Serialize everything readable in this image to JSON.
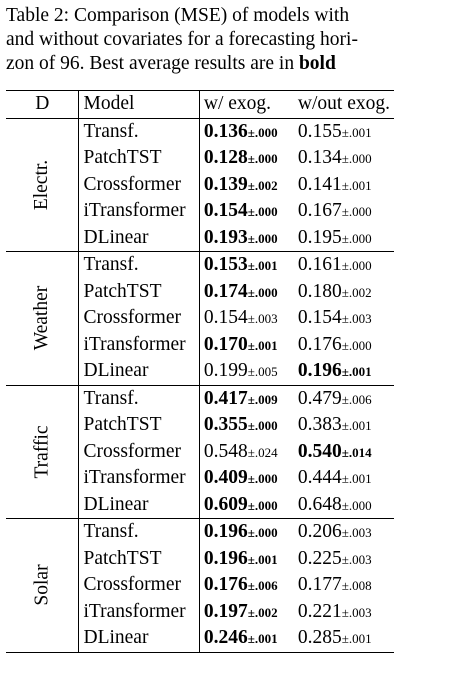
{
  "caption": {
    "line1": "Table 2: Comparison (MSE) of models with",
    "line2": "and without covariates for a forecasting hori-",
    "line3_prefix": "zon of 96. Best average results are in ",
    "line3_bold": "bold"
  },
  "header": {
    "dataset": "D",
    "model": "Model",
    "with": "w/ exog.",
    "without": "w/out exog."
  },
  "groups": [
    {
      "dataset": "Electr.",
      "rows": [
        {
          "model": "Transf.",
          "with": {
            "mean": "0.136",
            "sd": "±.000",
            "best": true
          },
          "without": {
            "mean": "0.155",
            "sd": "±.001",
            "best": false
          }
        },
        {
          "model": "PatchTST",
          "with": {
            "mean": "0.128",
            "sd": "±.000",
            "best": true
          },
          "without": {
            "mean": "0.134",
            "sd": "±.000",
            "best": false
          }
        },
        {
          "model": "Crossformer",
          "with": {
            "mean": "0.139",
            "sd": "±.002",
            "best": true
          },
          "without": {
            "mean": "0.141",
            "sd": "±.001",
            "best": false
          }
        },
        {
          "model": "iTransformer",
          "with": {
            "mean": "0.154",
            "sd": "±.000",
            "best": true
          },
          "without": {
            "mean": "0.167",
            "sd": "±.000",
            "best": false
          }
        },
        {
          "model": "DLinear",
          "with": {
            "mean": "0.193",
            "sd": "±.000",
            "best": true
          },
          "without": {
            "mean": "0.195",
            "sd": "±.000",
            "best": false
          }
        }
      ]
    },
    {
      "dataset": "Weather",
      "rows": [
        {
          "model": "Transf.",
          "with": {
            "mean": "0.153",
            "sd": "±.001",
            "best": true
          },
          "without": {
            "mean": "0.161",
            "sd": "±.000",
            "best": false
          }
        },
        {
          "model": "PatchTST",
          "with": {
            "mean": "0.174",
            "sd": "±.000",
            "best": true
          },
          "without": {
            "mean": "0.180",
            "sd": "±.002",
            "best": false
          }
        },
        {
          "model": "Crossformer",
          "with": {
            "mean": "0.154",
            "sd": "±.003",
            "best": false
          },
          "without": {
            "mean": "0.154",
            "sd": "±.003",
            "best": false
          }
        },
        {
          "model": "iTransformer",
          "with": {
            "mean": "0.170",
            "sd": "±.001",
            "best": true
          },
          "without": {
            "mean": "0.176",
            "sd": "±.000",
            "best": false
          }
        },
        {
          "model": "DLinear",
          "with": {
            "mean": "0.199",
            "sd": "±.005",
            "best": false
          },
          "without": {
            "mean": "0.196",
            "sd": "±.001",
            "best": true
          }
        }
      ]
    },
    {
      "dataset": "Traffic",
      "rows": [
        {
          "model": "Transf.",
          "with": {
            "mean": "0.417",
            "sd": "±.009",
            "best": true
          },
          "without": {
            "mean": "0.479",
            "sd": "±.006",
            "best": false
          }
        },
        {
          "model": "PatchTST",
          "with": {
            "mean": "0.355",
            "sd": "±.000",
            "best": true
          },
          "without": {
            "mean": "0.383",
            "sd": "±.001",
            "best": false
          }
        },
        {
          "model": "Crossformer",
          "with": {
            "mean": "0.548",
            "sd": "±.024",
            "best": false
          },
          "without": {
            "mean": "0.540",
            "sd": "±.014",
            "best": true
          }
        },
        {
          "model": "iTransformer",
          "with": {
            "mean": "0.409",
            "sd": "±.000",
            "best": true
          },
          "without": {
            "mean": "0.444",
            "sd": "±.001",
            "best": false
          }
        },
        {
          "model": "DLinear",
          "with": {
            "mean": "0.609",
            "sd": "±.000",
            "best": true
          },
          "without": {
            "mean": "0.648",
            "sd": "±.000",
            "best": false
          }
        }
      ]
    },
    {
      "dataset": "Solar",
      "rows": [
        {
          "model": "Transf.",
          "with": {
            "mean": "0.196",
            "sd": "±.000",
            "best": true
          },
          "without": {
            "mean": "0.206",
            "sd": "±.003",
            "best": false
          }
        },
        {
          "model": "PatchTST",
          "with": {
            "mean": "0.196",
            "sd": "±.001",
            "best": true
          },
          "without": {
            "mean": "0.225",
            "sd": "±.003",
            "best": false
          }
        },
        {
          "model": "Crossformer",
          "with": {
            "mean": "0.176",
            "sd": "±.006",
            "best": true
          },
          "without": {
            "mean": "0.177",
            "sd": "±.008",
            "best": false
          }
        },
        {
          "model": "iTransformer",
          "with": {
            "mean": "0.197",
            "sd": "±.002",
            "best": true
          },
          "without": {
            "mean": "0.221",
            "sd": "±.003",
            "best": false
          }
        },
        {
          "model": "DLinear",
          "with": {
            "mean": "0.246",
            "sd": "±.001",
            "best": true
          },
          "without": {
            "mean": "0.285",
            "sd": "±.001",
            "best": false
          }
        }
      ]
    }
  ]
}
